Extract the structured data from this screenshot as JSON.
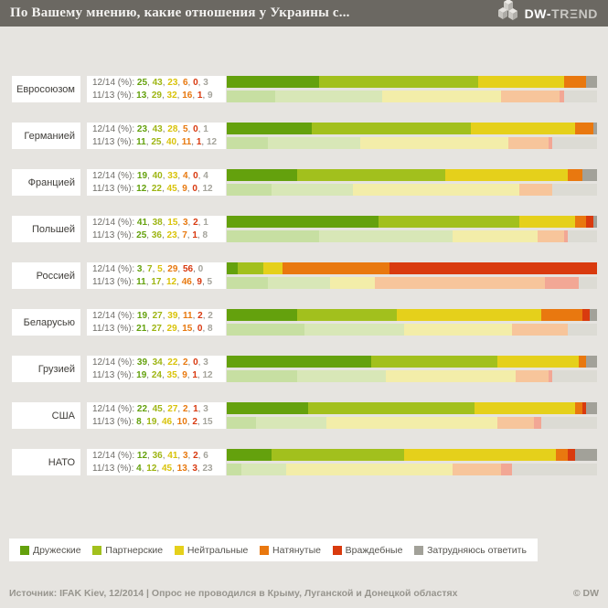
{
  "header": {
    "title": "По Вашему мнению, какие отношения у Украины с...",
    "brand_bold": "DW-",
    "brand_light": "TRΞND"
  },
  "series_labels": {
    "current": "12/14 (%):",
    "previous": "11/13 (%):"
  },
  "colors": {
    "header_bg": "#6b6862",
    "page_bg": "#e6e4e0",
    "box_bg": "#ffffff",
    "category_colors": [
      "#64a10d",
      "#a2c01d",
      "#e5d01b",
      "#e9780f",
      "#d93a0e",
      "#a2a199"
    ],
    "category_colors_pale": [
      "#c7dfa2",
      "#d8e7b7",
      "#f3eda9",
      "#f7c59b",
      "#f2a795",
      "#dcdbd4"
    ],
    "value_text_colors": [
      "#64a10d",
      "#9eb513",
      "#d9c30a",
      "#e8790f",
      "#d8390f",
      "#a5a49c"
    ],
    "separator_color": "#7a7874"
  },
  "legend": [
    {
      "label": "Дружеские",
      "color": "#64a10d"
    },
    {
      "label": "Партнерские",
      "color": "#a2c01d"
    },
    {
      "label": "Нейтральные",
      "color": "#e5d01b"
    },
    {
      "label": "Натянутые",
      "color": "#e9780f"
    },
    {
      "label": "Враждебные",
      "color": "#d93a0e"
    },
    {
      "label": "Затрудняюсь ответить",
      "color": "#a2a199"
    }
  ],
  "footer": {
    "source": "Источник: IFAK Kiev, 12/2014 | Опрос не проводился в Крыму, Луганской и Донецкой областях",
    "copyright": "© DW"
  },
  "chart_data": {
    "type": "bar",
    "stacked": true,
    "orientation": "horizontal",
    "unit": "%",
    "xlim": [
      0,
      100
    ],
    "title": "По Вашему мнению, какие отношения у Украины с...",
    "categories": [
      "Дружеские",
      "Партнерские",
      "Нейтральные",
      "Натянутые",
      "Враждебные",
      "Затрудняюсь ответить"
    ],
    "series_names": [
      "12/14",
      "11/13"
    ],
    "rows": [
      {
        "label": "Евросоюзом",
        "current": [
          25,
          43,
          23,
          6,
          0,
          3
        ],
        "previous": [
          13,
          29,
          32,
          16,
          1,
          9
        ]
      },
      {
        "label": "Германией",
        "current": [
          23,
          43,
          28,
          5,
          0,
          1
        ],
        "previous": [
          11,
          25,
          40,
          11,
          1,
          12
        ]
      },
      {
        "label": "Францией",
        "current": [
          19,
          40,
          33,
          4,
          0,
          4
        ],
        "previous": [
          12,
          22,
          45,
          9,
          0,
          12
        ]
      },
      {
        "label": "Польшей",
        "current": [
          41,
          38,
          15,
          3,
          2,
          1
        ],
        "previous": [
          25,
          36,
          23,
          7,
          1,
          8
        ]
      },
      {
        "label": "Россией",
        "current": [
          3,
          7,
          5,
          29,
          56,
          0
        ],
        "previous": [
          11,
          17,
          12,
          46,
          9,
          5
        ]
      },
      {
        "label": "Беларусью",
        "current": [
          19,
          27,
          39,
          11,
          2,
          2
        ],
        "previous": [
          21,
          27,
          29,
          15,
          0,
          8
        ]
      },
      {
        "label": "Грузией",
        "current": [
          39,
          34,
          22,
          2,
          0,
          3
        ],
        "previous": [
          19,
          24,
          35,
          9,
          1,
          12
        ]
      },
      {
        "label": "США",
        "current": [
          22,
          45,
          27,
          2,
          1,
          3
        ],
        "previous": [
          8,
          19,
          46,
          10,
          2,
          15
        ]
      },
      {
        "label": "НАТО",
        "current": [
          12,
          36,
          41,
          3,
          2,
          6
        ],
        "previous": [
          4,
          12,
          45,
          13,
          3,
          23
        ]
      }
    ]
  }
}
